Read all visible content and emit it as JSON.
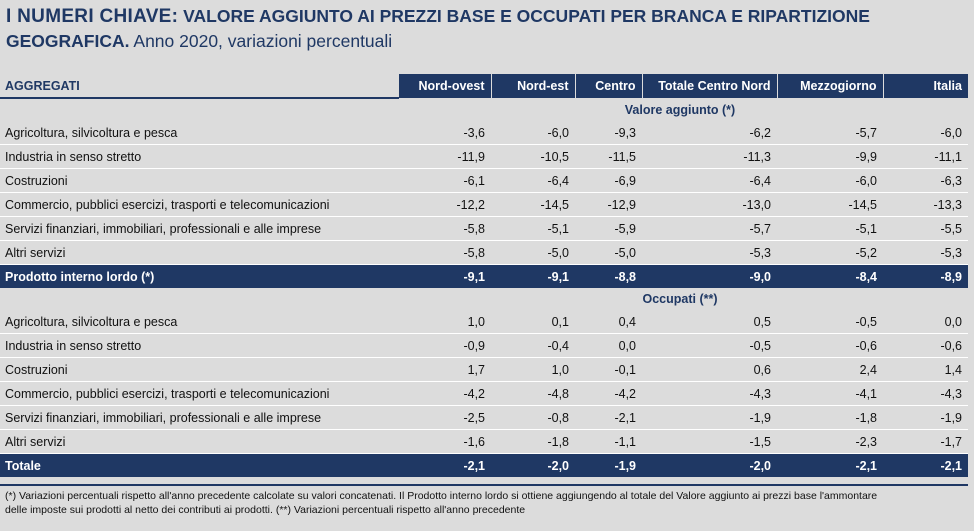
{
  "title": {
    "keyword": "I NUMERI CHIAVE:",
    "main": "VALORE AGGIUNTO AI PREZZI BASE E OCCUPATI PER BRANCA E RIPARTIZIONE GEOGRAFICA.",
    "sub": "Anno 2020, variazioni percentuali"
  },
  "table": {
    "columns": [
      "AGGREGATI",
      "Nord-ovest",
      "Nord-est",
      "Centro",
      "Totale Centro Nord",
      "Mezzogiorno",
      "Italia"
    ],
    "sections": [
      {
        "heading": "Valore aggiunto (*)",
        "rows": [
          {
            "label": "Agricoltura, silvicoltura e pesca",
            "values": [
              "-3,6",
              "-6,0",
              "-9,3",
              "-6,2",
              "-5,7",
              "-6,0"
            ]
          },
          {
            "label": "Industria in senso stretto",
            "values": [
              "-11,9",
              "-10,5",
              "-11,5",
              "-11,3",
              "-9,9",
              "-11,1"
            ]
          },
          {
            "label": "Costruzioni",
            "values": [
              "-6,1",
              "-6,4",
              "-6,9",
              "-6,4",
              "-6,0",
              "-6,3"
            ]
          },
          {
            "label": "Commercio, pubblici esercizi, trasporti e telecomunicazioni",
            "values": [
              "-12,2",
              "-14,5",
              "-12,9",
              "-13,0",
              "-14,5",
              "-13,3"
            ]
          },
          {
            "label": "Servizi finanziari, immobiliari, professionali e alle imprese",
            "values": [
              "-5,8",
              "-5,1",
              "-5,9",
              "-5,7",
              "-5,1",
              "-5,5"
            ]
          },
          {
            "label": "Altri servizi",
            "values": [
              "-5,8",
              "-5,0",
              "-5,0",
              "-5,3",
              "-5,2",
              "-5,3"
            ]
          }
        ],
        "total": {
          "label": "Prodotto interno lordo (*)",
          "values": [
            "-9,1",
            "-9,1",
            "-8,8",
            "-9,0",
            "-8,4",
            "-8,9"
          ]
        }
      },
      {
        "heading": "Occupati (**)",
        "rows": [
          {
            "label": "Agricoltura, silvicoltura e pesca",
            "values": [
              "1,0",
              "0,1",
              "0,4",
              "0,5",
              "-0,5",
              "0,0"
            ]
          },
          {
            "label": "Industria in senso stretto",
            "values": [
              "-0,9",
              "-0,4",
              "0,0",
              "-0,5",
              "-0,6",
              "-0,6"
            ]
          },
          {
            "label": "Costruzioni",
            "values": [
              "1,7",
              "1,0",
              "-0,1",
              "0,6",
              "2,4",
              "1,4"
            ]
          },
          {
            "label": "Commercio, pubblici esercizi, trasporti e telecomunicazioni",
            "values": [
              "-4,2",
              "-4,8",
              "-4,2",
              "-4,3",
              "-4,1",
              "-4,3"
            ]
          },
          {
            "label": "Servizi finanziari, immobiliari, professionali e alle imprese",
            "values": [
              "-2,5",
              "-0,8",
              "-2,1",
              "-1,9",
              "-1,8",
              "-1,9"
            ]
          },
          {
            "label": "Altri servizi",
            "values": [
              "-1,6",
              "-1,8",
              "-1,1",
              "-1,5",
              "-2,3",
              "-1,7"
            ]
          }
        ],
        "total": {
          "label": "Totale",
          "values": [
            "-2,1",
            "-2,0",
            "-1,9",
            "-2,0",
            "-2,1",
            "-2,1"
          ]
        }
      }
    ]
  },
  "footnote": {
    "line1": "(*) Variazioni percentuali rispetto all'anno precedente calcolate su valori concatenati. Il Prodotto interno lordo si ottiene aggiungendo al totale del Valore aggiunto ai prezzi base l'ammontare",
    "line2": "delle imposte sui prodotti al netto dei contributi ai prodotti.  (**) Variazioni percentuali rispetto all'anno precedente"
  },
  "colors": {
    "accent": "#1f3864",
    "background": "#dcdcdc"
  }
}
